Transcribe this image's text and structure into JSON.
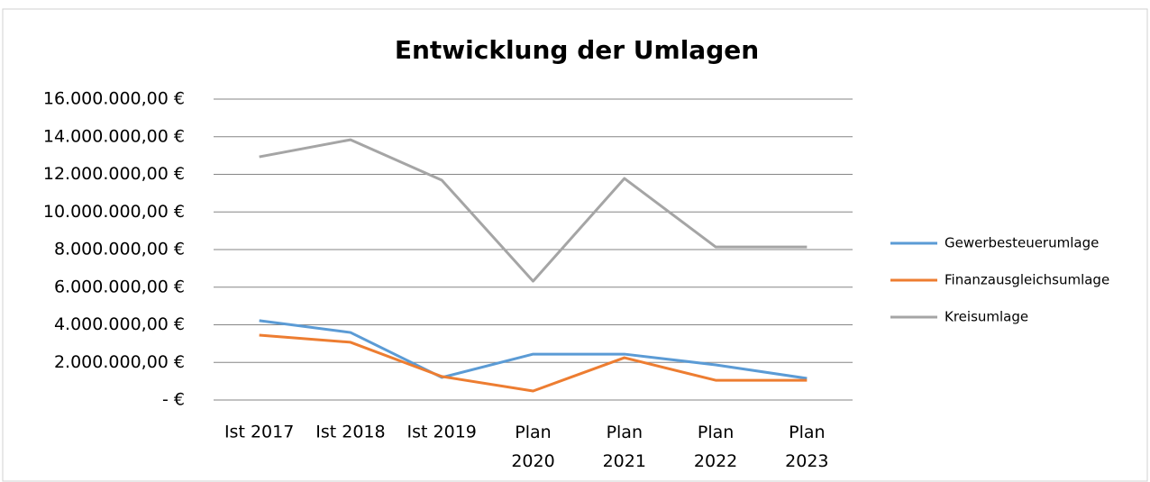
{
  "chart_data": {
    "type": "line",
    "title": "Entwicklung der Umlagen",
    "categories": [
      "Ist 2017",
      "Ist 2018",
      "Ist 2019",
      "Plan 2020",
      "Plan 2021",
      "Plan 2022",
      "Plan 2023"
    ],
    "series": [
      {
        "name": "Gewerbesteuerumlage",
        "color": "#5b9bd5",
        "values": [
          4220000,
          3590000,
          1200000,
          2440000,
          2440000,
          1870000,
          1150000
        ]
      },
      {
        "name": "Finanzausgleichsumlage",
        "color": "#ed7d31",
        "values": [
          3450000,
          3070000,
          1250000,
          480000,
          2250000,
          1050000,
          1050000
        ]
      },
      {
        "name": "Kreisumlage",
        "color": "#a5a5a5",
        "values": [
          12930000,
          13840000,
          11690000,
          6320000,
          11780000,
          8140000,
          8140000
        ]
      }
    ],
    "ylim": [
      0,
      16000000
    ],
    "yticks": [
      {
        "value": 0,
        "label": "-   €"
      },
      {
        "value": 2000000,
        "label": "2.000.000,00 €"
      },
      {
        "value": 4000000,
        "label": "4.000.000,00 €"
      },
      {
        "value": 6000000,
        "label": "6.000.000,00 €"
      },
      {
        "value": 8000000,
        "label": "8.000.000,00 €"
      },
      {
        "value": 10000000,
        "label": "10.000.000,00 €"
      },
      {
        "value": 12000000,
        "label": "12.000.000,00 €"
      },
      {
        "value": 14000000,
        "label": "14.000.000,00 €"
      },
      {
        "value": 16000000,
        "label": "16.000.000,00 €"
      }
    ],
    "grid": true,
    "legend": "right"
  }
}
